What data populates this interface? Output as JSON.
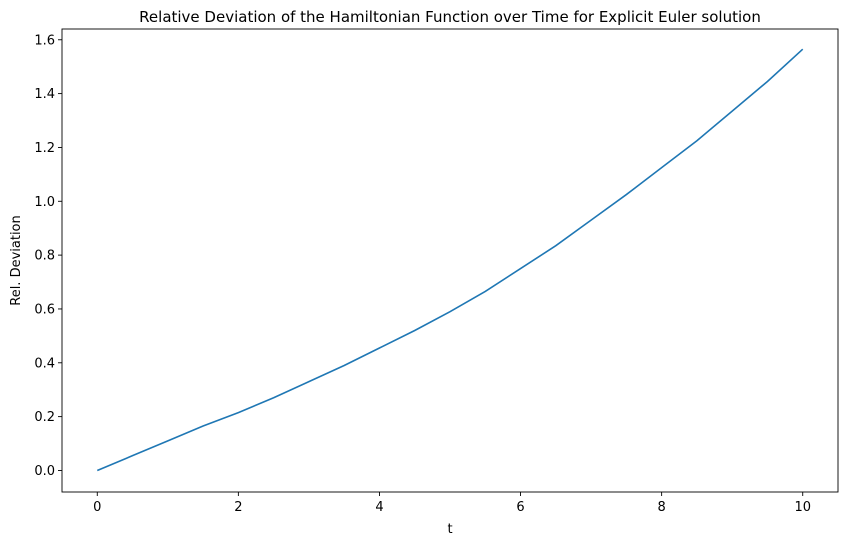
{
  "chart_data": {
    "type": "line",
    "title": "Relative Deviation of the Hamiltonian Function over Time for Explicit Euler solution",
    "xlabel": "t",
    "ylabel": "Rel. Deviation",
    "xlim": [
      -0.5,
      10.5
    ],
    "ylim": [
      -0.08,
      1.64
    ],
    "xticks": [
      0,
      2,
      4,
      6,
      8,
      10
    ],
    "xtick_labels": [
      "0",
      "2",
      "4",
      "6",
      "8",
      "10"
    ],
    "yticks": [
      0.0,
      0.2,
      0.4,
      0.6,
      0.8,
      1.0,
      1.2,
      1.4,
      1.6
    ],
    "ytick_labels": [
      "0.0",
      "0.2",
      "0.4",
      "0.6",
      "0.8",
      "1.0",
      "1.2",
      "1.4",
      "1.6"
    ],
    "grid": false,
    "series": [
      {
        "color": "#1f77b4",
        "x": [
          0,
          0.5,
          1,
          1.5,
          2,
          2.5,
          3,
          3.5,
          4,
          4.5,
          5,
          5.5,
          6,
          6.5,
          7,
          7.5,
          8,
          8.5,
          9,
          9.5,
          10
        ],
        "y": [
          0.0,
          0.055,
          0.11,
          0.165,
          0.215,
          0.27,
          0.33,
          0.39,
          0.455,
          0.52,
          0.59,
          0.665,
          0.75,
          0.835,
          0.93,
          1.025,
          1.125,
          1.225,
          1.335,
          1.445,
          1.565
        ]
      }
    ]
  }
}
